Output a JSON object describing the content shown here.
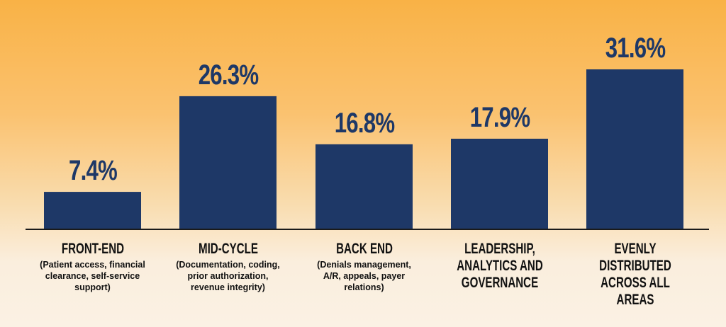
{
  "chart_data": {
    "type": "bar",
    "categories": [
      "FRONT-END",
      "MID-CYCLE",
      "BACK END",
      "LEADERSHIP,\nANALYTICS AND\nGOVERNANCE",
      "EVENLY DISTRIBUTED\nACROSS ALL AREAS"
    ],
    "subcategories": [
      "(Patient access, financial\nclearance, self-service\nsupport)",
      "(Documentation, coding,\nprior authorization,\nrevenue integrity)",
      "(Denials management,\nA/R, appeals, payer\nrelations)",
      "",
      ""
    ],
    "values": [
      7.4,
      26.3,
      16.8,
      17.9,
      31.6
    ],
    "data_labels": [
      "7.4%",
      "26.3%",
      "16.8%",
      "17.9%",
      "31.6%"
    ],
    "ylim": [
      0,
      31.6
    ],
    "grid": false,
    "bar_color": "#1e3867",
    "axis_color": "#1a1a1a"
  }
}
